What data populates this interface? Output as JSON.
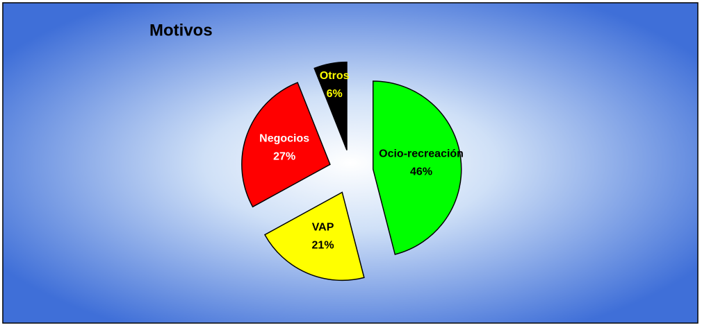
{
  "chart_data": {
    "type": "pie",
    "title": "Motivos",
    "categories": [
      "Ocio-recreación",
      "VAP",
      "Negocios",
      "Otros"
    ],
    "values": [
      46,
      21,
      27,
      6
    ],
    "value_labels": [
      "46%",
      "21%",
      "27%",
      "6%"
    ],
    "colors": [
      "#00ff00",
      "#ffff00",
      "#ff0000",
      "#000000"
    ],
    "label_colors": [
      "#000000",
      "#000000",
      "#ffffff",
      "#ffff00"
    ]
  }
}
